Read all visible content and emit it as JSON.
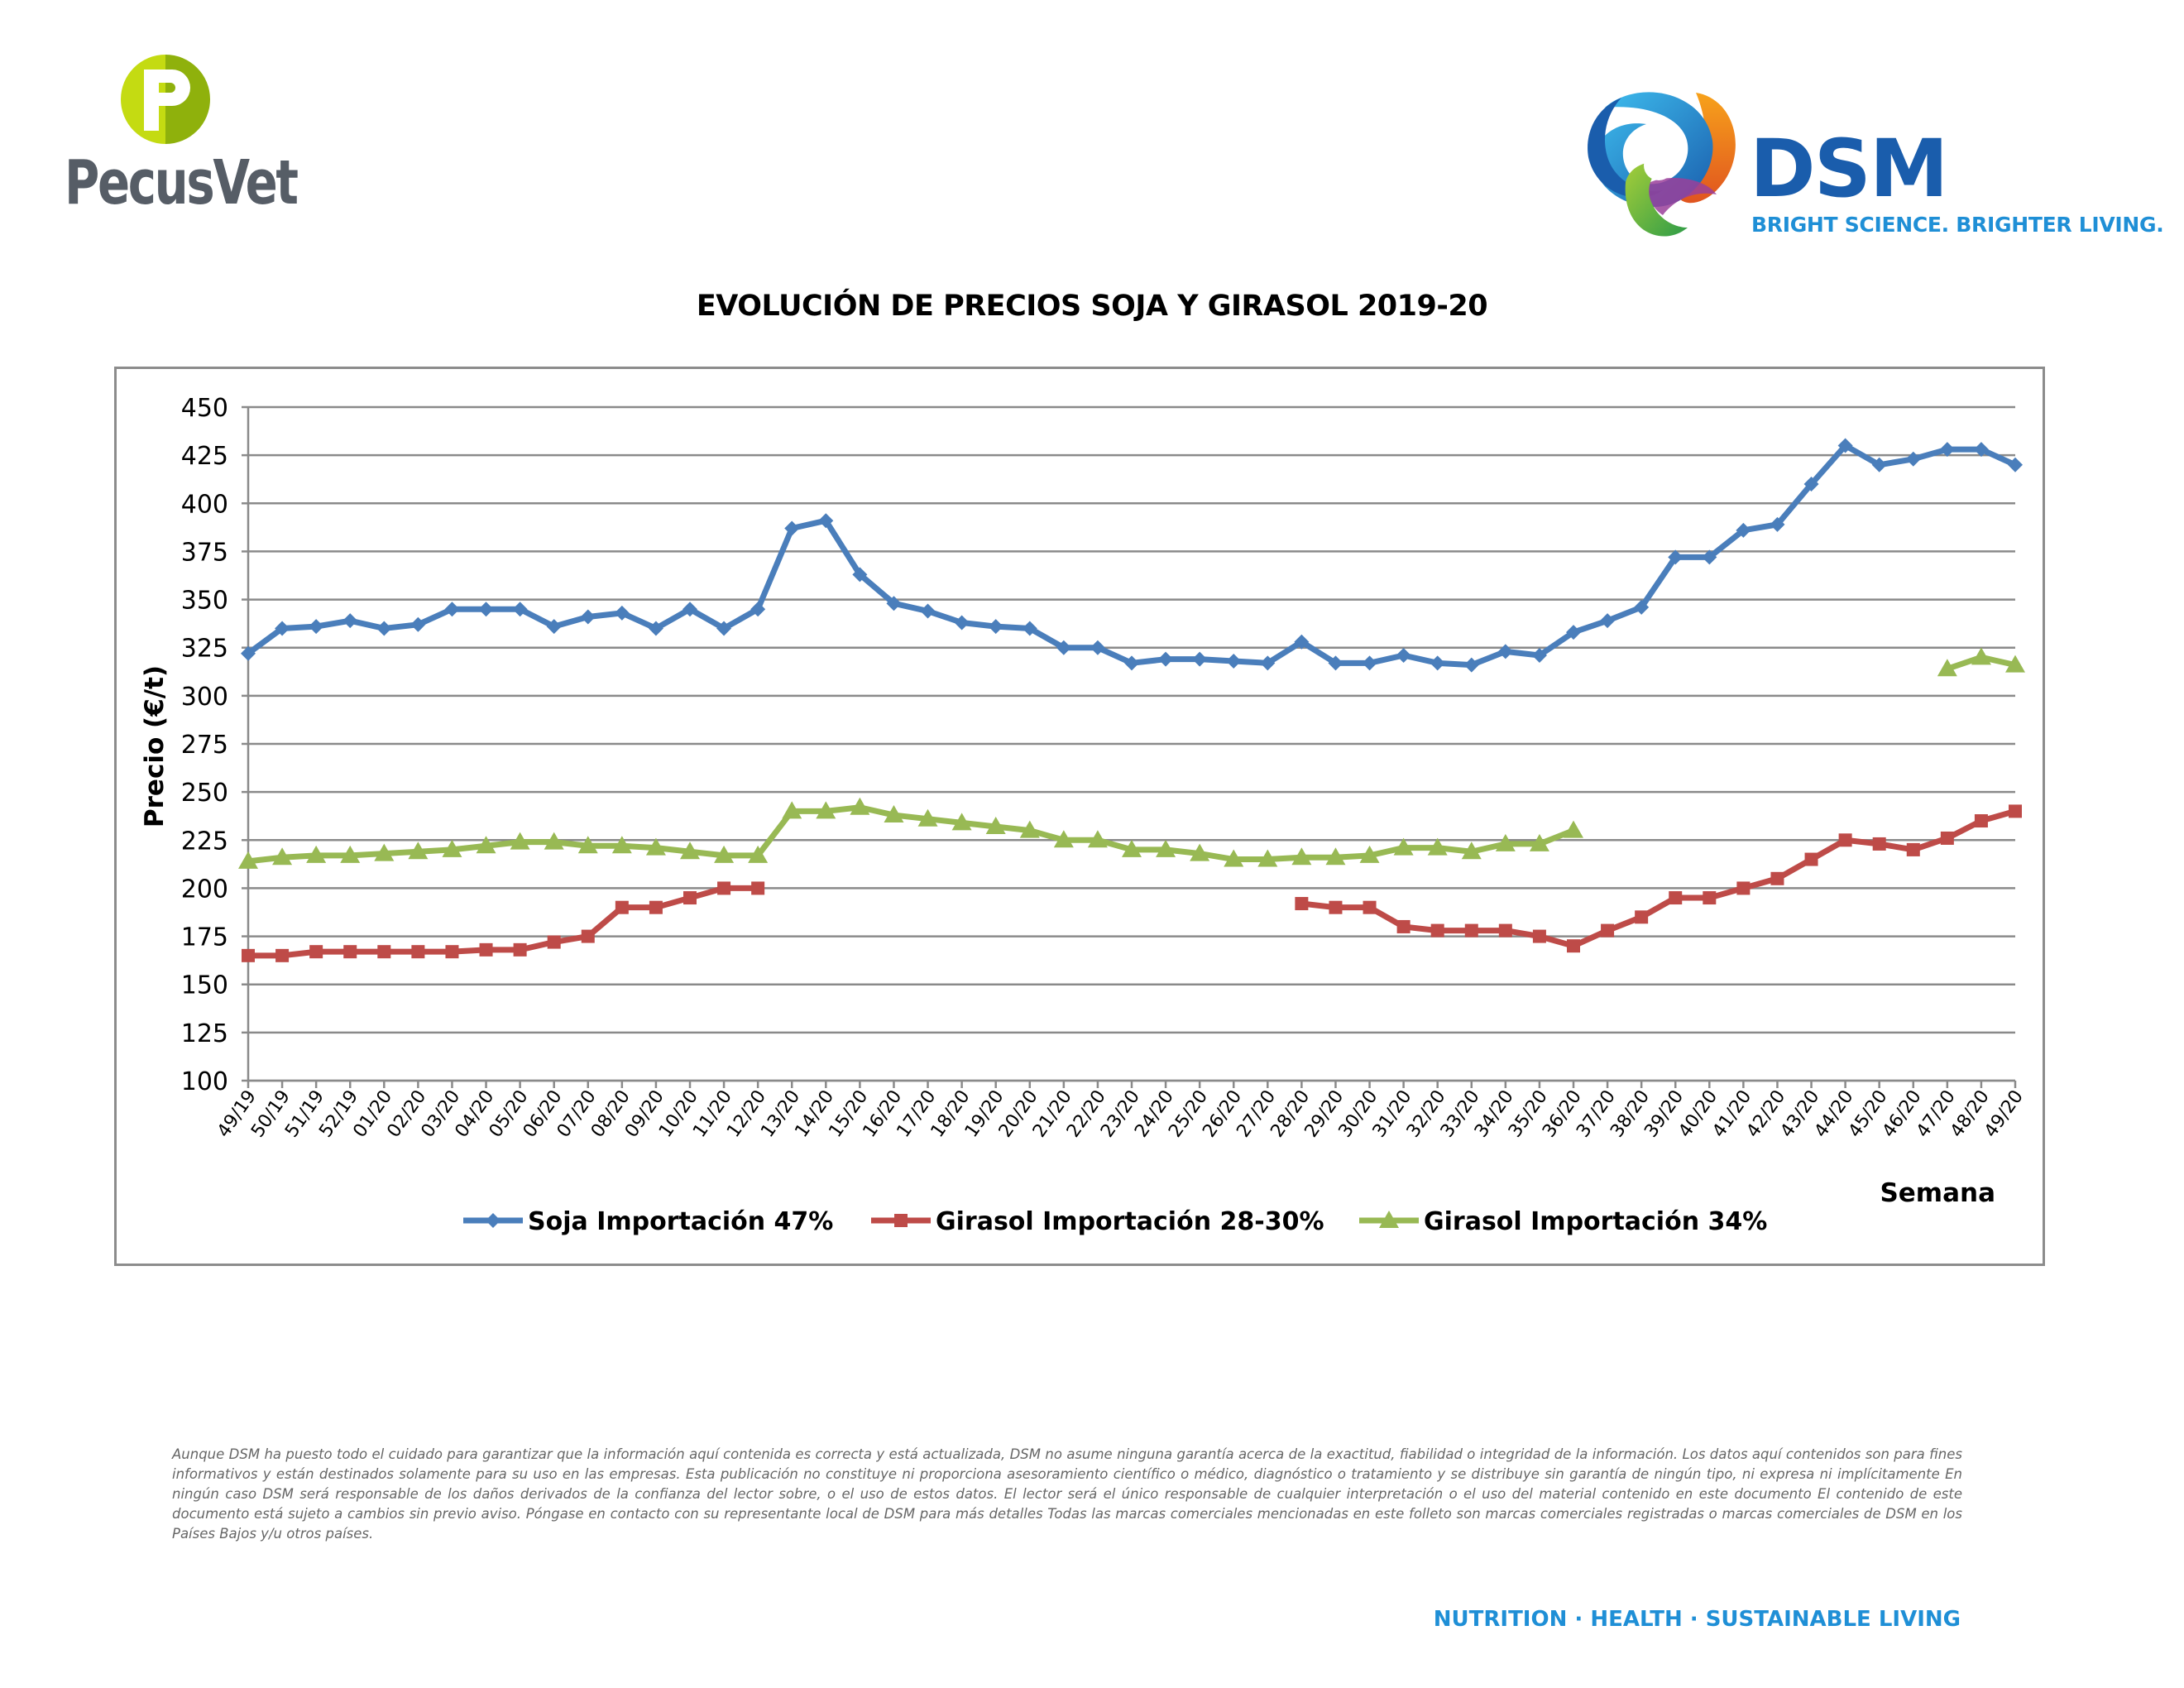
{
  "logos": {
    "pecusvet": {
      "text": "PecusVet",
      "mark_letter": "P",
      "colors": {
        "mark": "#b8d20f",
        "text": "#565d66"
      }
    },
    "dsm": {
      "name": "DSM",
      "tagline": "BRIGHT SCIENCE. BRIGHTER LIVING.",
      "colors": {
        "name": "#1a5dac",
        "tagline": "#1f8fd6"
      }
    }
  },
  "footer": {
    "disclaimer": "Aunque DSM ha puesto todo el cuidado para garantizar que la información aquí contenida es correcta y está actualizada, DSM no asume ninguna garantía acerca de la exactitud, fiabilidad o integridad de la información. Los datos aquí contenidos son para fines informativos y están destinados solamente para su uso en las empresas. Esta publicación no constituye ni proporciona asesoramiento científico o médico, diagnóstico o tratamiento y se distribuye sin garantía de ningún tipo, ni expresa ni implícitamente En ningún caso DSM será responsable de los daños derivados de la confianza del lector sobre, o el uso de estos datos. El lector será el único responsable de cualquier interpretación o el uso del material contenido en este documento El contenido de este documento está sujeto a cambios sin previo aviso. Póngase en contacto con su representante local de DSM para más detalles Todas las marcas comerciales mencionadas en este folleto son marcas comerciales registradas o marcas comerciales de DSM en los Países Bajos y/u otros países.",
    "tagline": "NUTRITION · HEALTH · SUSTAINABLE LIVING"
  },
  "chart_data": {
    "type": "line",
    "title": "EVOLUCIÓN DE PRECIOS SOJA Y GIRASOL 2019-20",
    "xlabel": "Semana",
    "ylabel": "Precio (€/t)",
    "ylim": [
      100,
      450
    ],
    "ytick_step": 25,
    "grid": "horizontal",
    "legend_position": "bottom",
    "categories": [
      "49/19",
      "50/19",
      "51/19",
      "52/19",
      "01/20",
      "02/20",
      "03/20",
      "04/20",
      "05/20",
      "06/20",
      "07/20",
      "08/20",
      "09/20",
      "10/20",
      "11/20",
      "12/20",
      "13/20",
      "14/20",
      "15/20",
      "16/20",
      "17/20",
      "18/20",
      "19/20",
      "20/20",
      "21/20",
      "22/20",
      "23/20",
      "24/20",
      "25/20",
      "26/20",
      "27/20",
      "28/20",
      "29/20",
      "30/20",
      "31/20",
      "32/20",
      "33/20",
      "34/20",
      "35/20",
      "36/20",
      "37/20",
      "38/20",
      "39/20",
      "40/20",
      "41/20",
      "42/20",
      "43/20",
      "44/20",
      "45/20",
      "46/20",
      "47/20",
      "48/20",
      "49/20"
    ],
    "series": [
      {
        "name": "Soja Importación 47%",
        "color": "#4a7ebb",
        "marker": "diamond",
        "values": [
          322,
          335,
          336,
          339,
          335,
          337,
          345,
          345,
          345,
          336,
          341,
          343,
          335,
          345,
          335,
          345,
          387,
          391,
          363,
          348,
          344,
          338,
          336,
          335,
          325,
          325,
          317,
          319,
          319,
          318,
          317,
          328,
          317,
          317,
          321,
          317,
          316,
          323,
          321,
          333,
          339,
          346,
          372,
          372,
          386,
          389,
          410,
          430,
          420,
          423,
          428,
          428,
          420
        ]
      },
      {
        "name": "Girasol Importación 28-30%",
        "color": "#be4b48",
        "marker": "square",
        "values": [
          165,
          165,
          167,
          167,
          167,
          167,
          167,
          168,
          168,
          172,
          175,
          190,
          190,
          195,
          200,
          200,
          null,
          null,
          null,
          null,
          null,
          null,
          null,
          null,
          null,
          null,
          null,
          null,
          null,
          null,
          null,
          192,
          190,
          190,
          180,
          178,
          178,
          178,
          175,
          170,
          178,
          185,
          195,
          195,
          200,
          205,
          215,
          225,
          223,
          220,
          226,
          235,
          240
        ]
      },
      {
        "name": "Girasol Importación 34%",
        "color": "#98b954",
        "marker": "triangle",
        "values": [
          214,
          216,
          217,
          217,
          218,
          219,
          220,
          222,
          224,
          224,
          222,
          222,
          221,
          219,
          217,
          217,
          240,
          240,
          242,
          238,
          236,
          234,
          232,
          230,
          225,
          225,
          220,
          220,
          218,
          215,
          215,
          216,
          216,
          217,
          221,
          221,
          219,
          223,
          223,
          230,
          null,
          null,
          null,
          null,
          null,
          null,
          null,
          null,
          null,
          null,
          314,
          320,
          316
        ]
      }
    ]
  }
}
